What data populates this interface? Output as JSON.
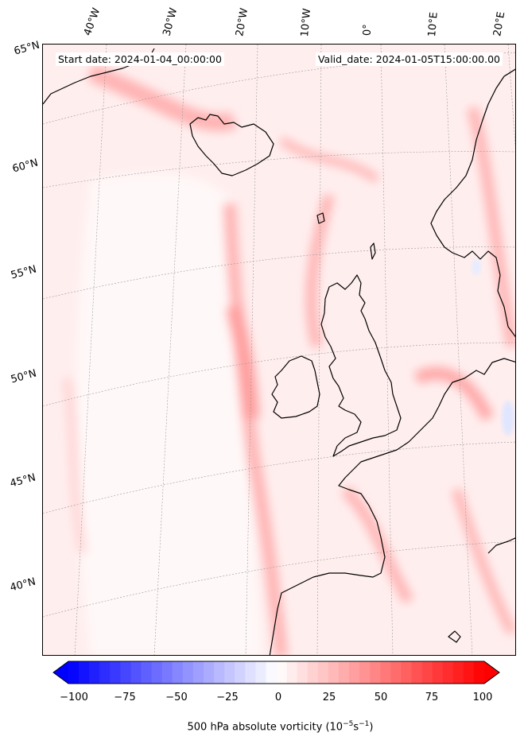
{
  "header": {
    "start_date": "Start date: 2024-01-04_00:00:00",
    "valid_date": "Valid_date: 2024-01-05T15:00:00.00"
  },
  "longitude_labels": [
    "40°W",
    "30°W",
    "20°W",
    "10°W",
    "0°",
    "10°E",
    "20°E"
  ],
  "latitude_labels": [
    "65°N",
    "60°N",
    "55°N",
    "50°N",
    "45°N",
    "40°N"
  ],
  "colorbar": {
    "ticks": [
      "−100",
      "−75",
      "−50",
      "−25",
      "0",
      "25",
      "50",
      "75",
      "100"
    ],
    "label_prefix": "500 hPa absolute vorticity (10",
    "label_exp1": "−5",
    "label_mid": "s",
    "label_exp2": "−1",
    "label_suffix": ")",
    "range": [
      -100,
      100
    ],
    "levels": 40,
    "colors": {
      "min": "#0000ff",
      "mid": "#ffffff",
      "max": "#ff0000"
    }
  },
  "map": {
    "land_outline_color": "#000000",
    "background_tint": "#ffecec",
    "strong_tint": "#ffb8b8"
  }
}
